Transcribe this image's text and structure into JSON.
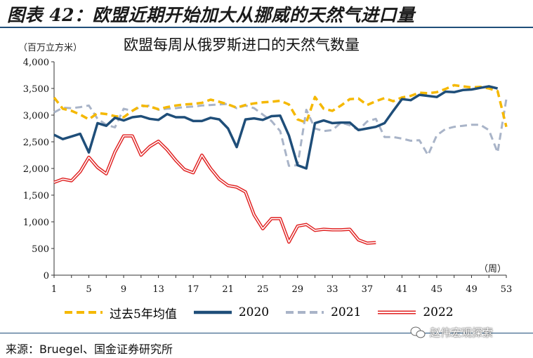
{
  "figure_title": "图表 42：欧盟近期开始加大从挪威的天然气进口量",
  "source": "来源：Bruegel、国金证券研究所",
  "watermark": "赵伟宏观探索",
  "chart_data": {
    "type": "line",
    "title": "欧盟每周从俄罗斯进口的天然气数量",
    "unit_label": "（百万立方米）",
    "xlabel": "（周）",
    "xlim": [
      1,
      53
    ],
    "ylim": [
      0,
      4000
    ],
    "x_ticks": [
      1,
      5,
      9,
      13,
      17,
      21,
      25,
      29,
      33,
      37,
      41,
      45,
      49,
      53
    ],
    "y_ticks": [
      0,
      500,
      1000,
      1500,
      2000,
      2500,
      3000,
      3500,
      4000
    ],
    "y_tick_labels": [
      "0",
      "500",
      "1,000",
      "1,500",
      "2,000",
      "2,500",
      "3,000",
      "3,500",
      "4,000"
    ],
    "legend_position": "bottom",
    "series": [
      {
        "name": "过去5年均值",
        "color": "#f5b800",
        "style": "dashed",
        "x": [
          1,
          2,
          3,
          4,
          5,
          6,
          7,
          8,
          9,
          10,
          11,
          12,
          13,
          14,
          15,
          16,
          17,
          18,
          19,
          20,
          21,
          22,
          23,
          24,
          25,
          26,
          27,
          28,
          29,
          30,
          31,
          32,
          33,
          34,
          35,
          36,
          37,
          38,
          39,
          40,
          41,
          42,
          43,
          44,
          45,
          46,
          47,
          48,
          49,
          50,
          51,
          52,
          53
        ],
        "values": [
          3330,
          3120,
          3080,
          3010,
          2920,
          3040,
          3020,
          2980,
          2960,
          3080,
          3180,
          3160,
          3110,
          3150,
          3180,
          3200,
          3210,
          3230,
          3290,
          3250,
          3200,
          3140,
          3190,
          3220,
          3240,
          3250,
          3270,
          3200,
          2920,
          2860,
          3340,
          3120,
          3080,
          3180,
          3300,
          3310,
          3190,
          3260,
          3320,
          3260,
          3330,
          3360,
          3420,
          3410,
          3430,
          3490,
          3560,
          3540,
          3520,
          3530,
          3500,
          3450,
          2780
        ]
      },
      {
        "name": "2020",
        "color": "#1f4e79",
        "style": "solid",
        "x": [
          1,
          2,
          3,
          4,
          5,
          6,
          7,
          8,
          9,
          10,
          11,
          12,
          13,
          14,
          15,
          16,
          17,
          18,
          19,
          20,
          21,
          22,
          23,
          24,
          25,
          26,
          27,
          28,
          29,
          30,
          31,
          32,
          33,
          34,
          35,
          36,
          37,
          38,
          39,
          40,
          41,
          42,
          43,
          44,
          45,
          46,
          47,
          48,
          49,
          50,
          51,
          52
        ],
        "values": [
          2630,
          2550,
          2600,
          2650,
          2300,
          2850,
          2800,
          2950,
          2900,
          2960,
          2980,
          2930,
          2910,
          3020,
          2960,
          2960,
          2890,
          2890,
          2950,
          2920,
          2750,
          2400,
          2920,
          2940,
          2910,
          2980,
          2990,
          2620,
          2060,
          2000,
          2850,
          2900,
          2850,
          2860,
          2860,
          2720,
          2750,
          2780,
          2850,
          3080,
          3300,
          3280,
          3380,
          3360,
          3340,
          3440,
          3430,
          3470,
          3480,
          3510,
          3540,
          3500
        ]
      },
      {
        "name": "2021",
        "color": "#a9b4c8",
        "style": "dashed",
        "x": [
          1,
          2,
          3,
          4,
          5,
          6,
          7,
          8,
          9,
          10,
          11,
          12,
          13,
          14,
          15,
          16,
          17,
          18,
          19,
          20,
          21,
          22,
          23,
          24,
          25,
          26,
          27,
          28,
          29,
          30,
          31,
          32,
          33,
          34,
          35,
          36,
          37,
          38,
          39,
          40,
          41,
          42,
          43,
          44,
          45,
          46,
          47,
          48,
          49,
          50,
          51,
          52,
          53
        ],
        "values": [
          3050,
          3140,
          3130,
          3150,
          3180,
          2930,
          2820,
          2770,
          3120,
          3080,
          3160,
          3180,
          3100,
          3120,
          3130,
          3150,
          3160,
          3180,
          3190,
          3200,
          3210,
          3130,
          3180,
          3130,
          3010,
          2890,
          2700,
          2050,
          2060,
          3100,
          2750,
          2700,
          2720,
          2860,
          2810,
          2720,
          2880,
          2930,
          2590,
          2590,
          2560,
          2520,
          2530,
          2250,
          2620,
          2740,
          2780,
          2800,
          2820,
          2820,
          2720,
          2300,
          3300
        ]
      },
      {
        "name": "2022",
        "color": "#e02020",
        "style": "double",
        "x": [
          1,
          2,
          3,
          4,
          5,
          6,
          7,
          8,
          9,
          10,
          11,
          12,
          13,
          14,
          15,
          16,
          17,
          18,
          19,
          20,
          21,
          22,
          23,
          24,
          25,
          26,
          27,
          28,
          29,
          30,
          31,
          32,
          33,
          34,
          35,
          36,
          37,
          38
        ],
        "values": [
          1740,
          1800,
          1770,
          1940,
          2210,
          2020,
          1900,
          2310,
          2610,
          2610,
          2250,
          2410,
          2510,
          2350,
          2150,
          1980,
          1920,
          2250,
          2000,
          1800,
          1680,
          1650,
          1560,
          1130,
          870,
          1060,
          1060,
          620,
          920,
          950,
          840,
          860,
          850,
          850,
          860,
          660,
          600,
          610
        ]
      }
    ]
  }
}
